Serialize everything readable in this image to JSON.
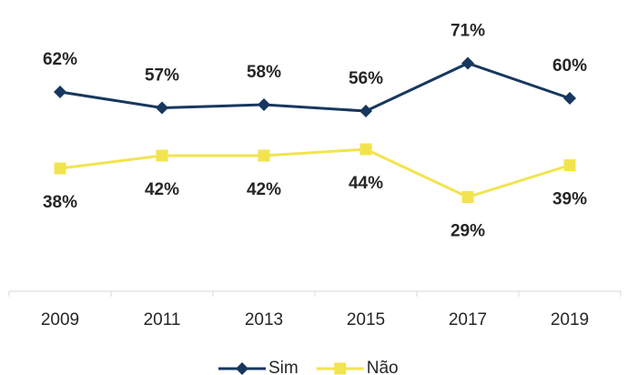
{
  "chart_data": {
    "type": "line",
    "categories": [
      "2009",
      "2011",
      "2013",
      "2015",
      "2017",
      "2019"
    ],
    "series": [
      {
        "name": "Sim",
        "color": "#17375e",
        "marker": "diamond",
        "values": [
          62,
          57,
          58,
          56,
          71,
          60
        ],
        "value_labels": [
          "62%",
          "57%",
          "58%",
          "56%",
          "71%",
          "60%"
        ]
      },
      {
        "name": "Não",
        "color": "#f2e44f",
        "marker": "square",
        "values": [
          38,
          42,
          42,
          44,
          29,
          39
        ],
        "value_labels": [
          "38%",
          "42%",
          "42%",
          "44%",
          "29%",
          "39%"
        ]
      }
    ],
    "ylim": [
      0,
      80
    ],
    "grid": false,
    "legend": "bottom"
  }
}
